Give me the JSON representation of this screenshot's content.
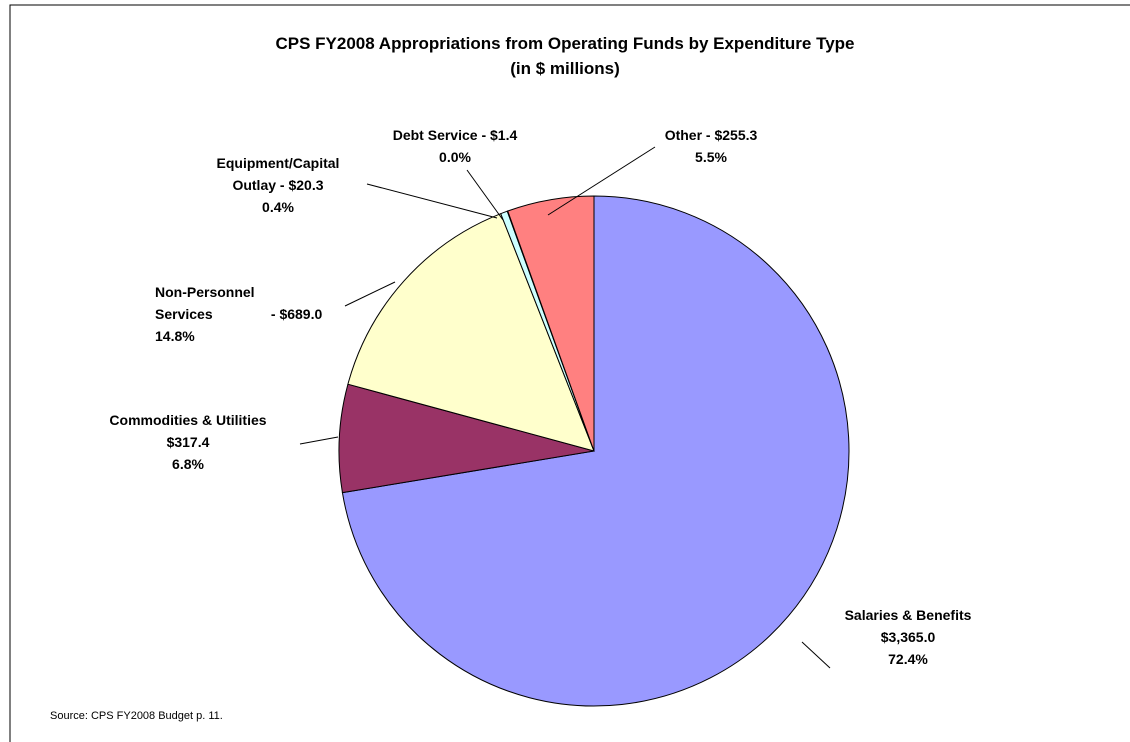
{
  "chart_data": {
    "type": "pie",
    "title": "CPS FY2008 Appropriations from Operating Funds by Expenditure Type",
    "subtitle": "(in $ millions)",
    "categories": [
      "Salaries & Benefits",
      "Commodities & Utilities",
      "Non-Personnel Services",
      "Equipment/Capital Outlay",
      "Debt Service",
      "Other"
    ],
    "values": [
      3365.0,
      317.4,
      689.0,
      20.3,
      1.4,
      255.3
    ],
    "value_labels": [
      "$3,365.0",
      "$317.4",
      "$689.0",
      "$20.3",
      "$1.4",
      "$255.3"
    ],
    "percents": [
      72.4,
      6.8,
      14.8,
      0.4,
      0.0,
      5.5
    ],
    "percent_labels": [
      "72.4%",
      "6.8%",
      "14.8%",
      "0.4%",
      "0.0%",
      "5.5%"
    ],
    "label_separator": " - ",
    "colors": [
      "#9999ff",
      "#993366",
      "#ffffcc",
      "#ccffff",
      "#660066",
      "#ff8080"
    ],
    "source": "Source:  CPS FY2008 Budget p. 11."
  }
}
